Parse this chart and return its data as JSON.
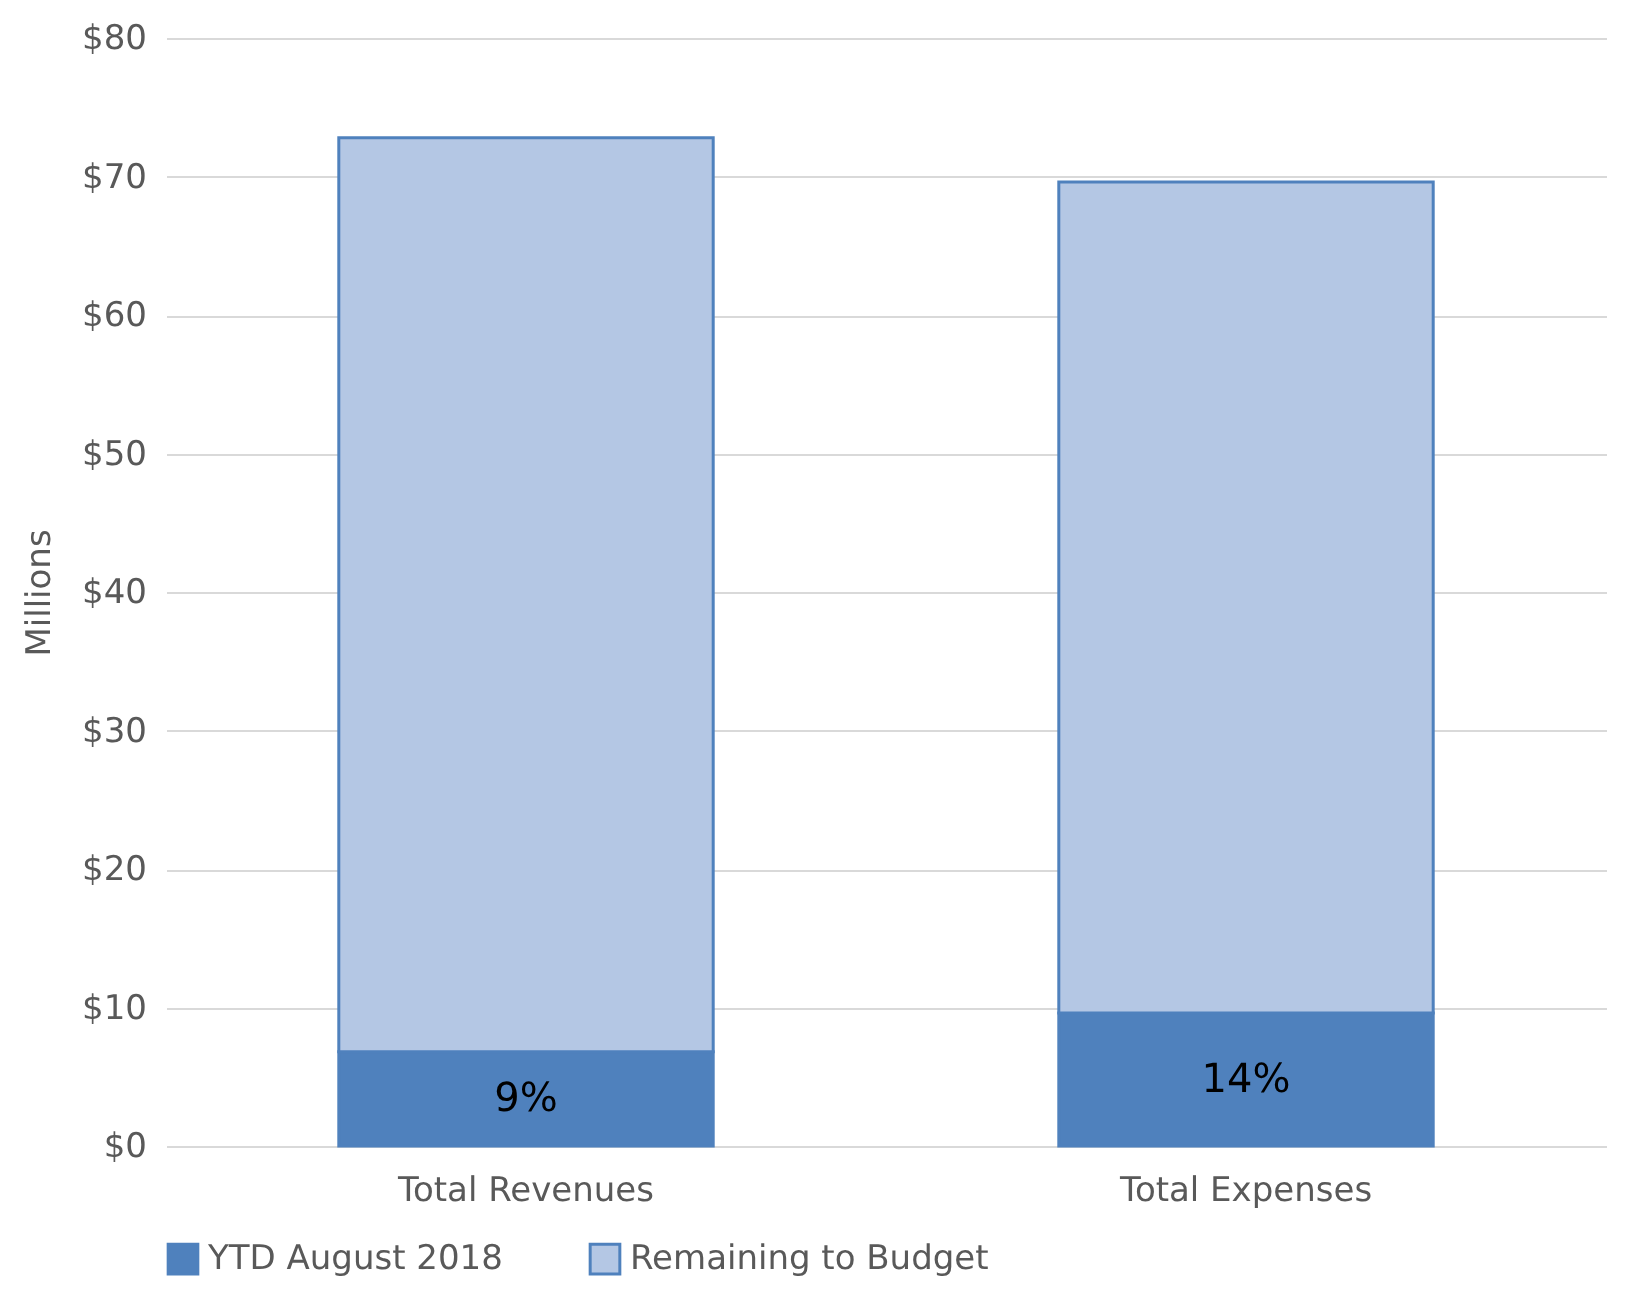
{
  "chart_data": {
    "type": "bar",
    "stacked": true,
    "ylabel": "Millions",
    "categories": [
      "Total Revenues",
      "Total Expenses"
    ],
    "series": [
      {
        "name": "YTD August 2018",
        "color": "#4f81bd",
        "values": [
          6.8,
          9.6
        ]
      },
      {
        "name": "Remaining to Budget",
        "color": "#b4c7e4",
        "values": [
          66.0,
          60.0
        ]
      }
    ],
    "ylim": [
      0,
      80
    ],
    "yticks": [
      {
        "value": 0,
        "label": "$0"
      },
      {
        "value": 10,
        "label": "$10"
      },
      {
        "value": 20,
        "label": "$20"
      },
      {
        "value": 30,
        "label": "$30"
      },
      {
        "value": 40,
        "label": "$40"
      },
      {
        "value": 50,
        "label": "$50"
      },
      {
        "value": 60,
        "label": "$60"
      },
      {
        "value": 70,
        "label": "$70"
      },
      {
        "value": 80,
        "label": "$80"
      }
    ],
    "annotations": [
      "9%",
      "14%"
    ],
    "grid": "y",
    "legend": "bottom"
  }
}
